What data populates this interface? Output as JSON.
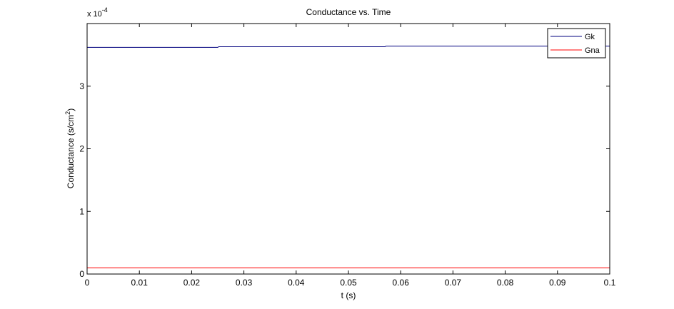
{
  "chart_data": {
    "type": "line",
    "title": "Conductance vs. Time",
    "xlabel": "t (s)",
    "ylabel_prefix": "Conductance (s/cm",
    "ylabel_sup": "2",
    "ylabel_suffix": ")",
    "y_multiplier_base": "x 10",
    "y_multiplier_exp": "-4",
    "xlim": [
      0,
      0.1
    ],
    "ylim": [
      0,
      4
    ],
    "x_ticks": [
      0,
      0.01,
      0.02,
      0.03,
      0.04,
      0.05,
      0.06,
      0.07,
      0.08,
      0.09,
      0.1
    ],
    "x_tick_labels": [
      "0",
      "0.01",
      "0.02",
      "0.03",
      "0.04",
      "0.05",
      "0.06",
      "0.07",
      "0.08",
      "0.09",
      "0.1"
    ],
    "y_ticks": [
      0,
      1,
      2,
      3
    ],
    "y_tick_labels": [
      "0",
      "1",
      "2",
      "3"
    ],
    "legend_position": "top-right",
    "grid": false,
    "series": [
      {
        "name": "Gk",
        "color": "#00007f",
        "x": [
          0,
          0.025,
          0.0252,
          0.057,
          0.0572,
          0.1
        ],
        "y": [
          3.62,
          3.62,
          3.63,
          3.63,
          3.64,
          3.64
        ]
      },
      {
        "name": "Gna",
        "color": "#ff0000",
        "x": [
          0,
          0.1
        ],
        "y": [
          0.1,
          0.1
        ]
      }
    ]
  }
}
